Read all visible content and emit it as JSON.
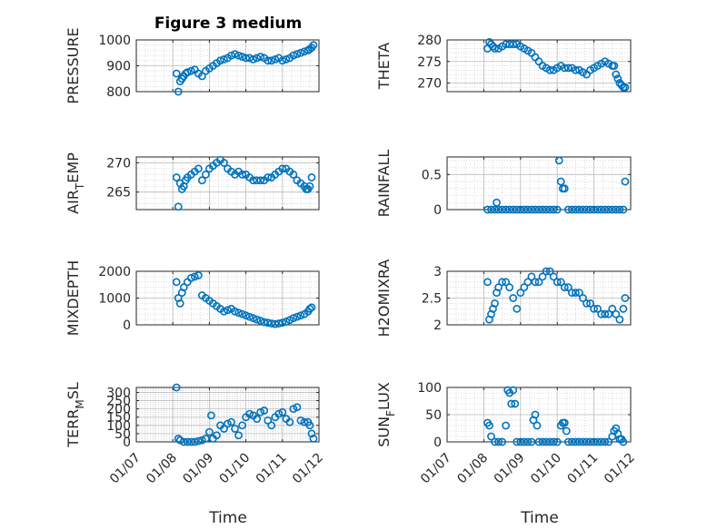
{
  "title": "Figure 3 medium",
  "x_axis_label": "Time",
  "marker_color": "#0072BD",
  "x_ticks": [
    "01/07",
    "01/08",
    "01/09",
    "01/10",
    "01/11",
    "01/12"
  ],
  "chart_data": [
    {
      "type": "scatter",
      "ylabel": "PRESSURE",
      "ylim": [
        800,
        1000
      ],
      "yticks": [
        800,
        900,
        1000
      ],
      "grid": true,
      "x": [
        1.1,
        1.15,
        1.2,
        1.25,
        1.3,
        1.35,
        1.4,
        1.5,
        1.6,
        1.7,
        1.8,
        1.9,
        2.0,
        2.1,
        2.2,
        2.3,
        2.4,
        2.5,
        2.6,
        2.7,
        2.8,
        2.9,
        3.0,
        3.1,
        3.2,
        3.3,
        3.4,
        3.5,
        3.6,
        3.7,
        3.8,
        3.9,
        4.0,
        4.1,
        4.2,
        4.3,
        4.4,
        4.5,
        4.6,
        4.7,
        4.75,
        4.8,
        4.85
      ],
      "y": [
        870,
        800,
        840,
        850,
        860,
        870,
        875,
        880,
        885,
        870,
        860,
        880,
        890,
        900,
        910,
        920,
        925,
        930,
        940,
        945,
        940,
        935,
        930,
        930,
        925,
        930,
        935,
        930,
        920,
        920,
        925,
        930,
        920,
        925,
        930,
        940,
        945,
        950,
        955,
        960,
        965,
        970,
        980
      ]
    },
    {
      "type": "scatter",
      "ylabel": "THETA",
      "ylim": [
        268,
        280
      ],
      "yticks": [
        270,
        275,
        280
      ],
      "grid": true,
      "x": [
        1.1,
        1.15,
        1.2,
        1.25,
        1.3,
        1.4,
        1.5,
        1.6,
        1.7,
        1.8,
        1.9,
        2.0,
        2.1,
        2.2,
        2.3,
        2.4,
        2.5,
        2.6,
        2.7,
        2.8,
        2.9,
        3.0,
        3.1,
        3.2,
        3.3,
        3.4,
        3.5,
        3.6,
        3.7,
        3.8,
        3.9,
        4.0,
        4.1,
        4.2,
        4.3,
        4.4,
        4.5,
        4.55,
        4.6,
        4.65,
        4.7,
        4.75,
        4.8,
        4.85
      ],
      "y": [
        278,
        279.5,
        279,
        278.5,
        278,
        278,
        278.5,
        279,
        279,
        279,
        279,
        278.5,
        278,
        277.5,
        277,
        276,
        275,
        274,
        273.5,
        273,
        273,
        273.5,
        274,
        273.5,
        273.5,
        273.5,
        273,
        273,
        272.5,
        272,
        273,
        273.5,
        274,
        274.5,
        275,
        274.5,
        274,
        274,
        272,
        271,
        270,
        269.5,
        269,
        269
      ]
    },
    {
      "type": "scatter",
      "ylabel": "AIR_TEMP",
      "ylabel_main": "AIR",
      "ylabel_sub": "T",
      "ylabel_rest": "EMP",
      "ylim": [
        262,
        271
      ],
      "yticks": [
        265,
        270
      ],
      "grid": true,
      "x": [
        1.1,
        1.15,
        1.2,
        1.25,
        1.3,
        1.35,
        1.4,
        1.5,
        1.6,
        1.7,
        1.8,
        1.9,
        2.0,
        2.1,
        2.2,
        2.3,
        2.4,
        2.5,
        2.6,
        2.7,
        2.8,
        2.9,
        3.0,
        3.1,
        3.2,
        3.3,
        3.4,
        3.5,
        3.6,
        3.7,
        3.8,
        3.9,
        4.0,
        4.1,
        4.2,
        4.3,
        4.4,
        4.5,
        4.6,
        4.65,
        4.7,
        4.75,
        4.8
      ],
      "y": [
        267.5,
        262.5,
        266.5,
        265.5,
        266,
        267,
        267.5,
        268,
        268.5,
        269,
        267,
        268,
        269,
        269.5,
        270,
        270.5,
        270,
        269,
        268.5,
        268,
        268.5,
        268,
        268,
        267.5,
        267,
        267,
        267,
        267,
        267.5,
        267.5,
        268,
        268.5,
        269,
        269,
        268.5,
        268,
        267,
        266.5,
        266,
        265.5,
        265.5,
        266,
        267.5
      ]
    },
    {
      "type": "scatter",
      "ylabel": "RAINFALL",
      "ylim": [
        0,
        0.75
      ],
      "yticks": [
        0,
        0.5
      ],
      "ytick_labels": [
        "0",
        "0.5"
      ],
      "grid": true,
      "x": [
        1.1,
        1.2,
        1.3,
        1.35,
        1.4,
        1.5,
        1.6,
        1.7,
        1.8,
        1.9,
        2.0,
        2.1,
        2.2,
        2.3,
        2.4,
        2.5,
        2.6,
        2.7,
        2.8,
        2.9,
        3.0,
        3.05,
        3.1,
        3.15,
        3.2,
        3.3,
        3.4,
        3.5,
        3.6,
        3.7,
        3.8,
        3.9,
        4.0,
        4.1,
        4.2,
        4.3,
        4.4,
        4.5,
        4.6,
        4.7,
        4.8,
        4.85
      ],
      "y": [
        0,
        0,
        0,
        0.1,
        0,
        0,
        0,
        0,
        0,
        0,
        0,
        0,
        0,
        0,
        0,
        0,
        0,
        0,
        0,
        0,
        0,
        0.7,
        0.4,
        0.3,
        0.3,
        0,
        0,
        0,
        0,
        0,
        0,
        0,
        0,
        0,
        0,
        0,
        0,
        0,
        0,
        0,
        0,
        0.4
      ]
    },
    {
      "type": "scatter",
      "ylabel": "MIXDEPTH",
      "ylim": [
        0,
        2000
      ],
      "yticks": [
        0,
        1000,
        2000
      ],
      "grid": true,
      "x": [
        1.1,
        1.15,
        1.2,
        1.25,
        1.3,
        1.4,
        1.5,
        1.6,
        1.7,
        1.8,
        1.9,
        2.0,
        2.1,
        2.2,
        2.3,
        2.4,
        2.5,
        2.6,
        2.7,
        2.8,
        2.9,
        3.0,
        3.1,
        3.2,
        3.3,
        3.4,
        3.5,
        3.6,
        3.7,
        3.8,
        3.9,
        4.0,
        4.1,
        4.2,
        4.3,
        4.4,
        4.5,
        4.6,
        4.7,
        4.75,
        4.8
      ],
      "y": [
        1600,
        1000,
        800,
        1200,
        1400,
        1600,
        1750,
        1800,
        1850,
        1100,
        1000,
        900,
        800,
        700,
        600,
        500,
        550,
        600,
        500,
        450,
        400,
        350,
        300,
        250,
        200,
        150,
        100,
        80,
        50,
        30,
        50,
        80,
        120,
        180,
        250,
        300,
        350,
        400,
        500,
        600,
        650
      ]
    },
    {
      "type": "scatter",
      "ylabel": "H2OMIXRA",
      "ylim": [
        2,
        3
      ],
      "yticks": [
        2,
        2.5,
        3
      ],
      "ytick_labels": [
        "2",
        "2.5",
        "3"
      ],
      "grid": true,
      "x": [
        1.1,
        1.15,
        1.2,
        1.25,
        1.3,
        1.35,
        1.4,
        1.5,
        1.6,
        1.7,
        1.8,
        1.9,
        2.0,
        2.1,
        2.2,
        2.3,
        2.4,
        2.5,
        2.6,
        2.7,
        2.8,
        2.9,
        3.0,
        3.1,
        3.2,
        3.3,
        3.4,
        3.5,
        3.6,
        3.7,
        3.8,
        3.9,
        4.0,
        4.1,
        4.2,
        4.3,
        4.4,
        4.5,
        4.6,
        4.7,
        4.8,
        4.85
      ],
      "y": [
        2.8,
        2.1,
        2.2,
        2.3,
        2.4,
        2.6,
        2.7,
        2.8,
        2.8,
        2.7,
        2.5,
        2.3,
        2.6,
        2.7,
        2.8,
        2.9,
        2.8,
        2.8,
        2.9,
        3.0,
        3.0,
        2.9,
        2.8,
        2.8,
        2.7,
        2.7,
        2.6,
        2.6,
        2.6,
        2.5,
        2.4,
        2.4,
        2.3,
        2.3,
        2.2,
        2.2,
        2.2,
        2.3,
        2.2,
        2.1,
        2.3,
        2.5
      ]
    },
    {
      "type": "scatter",
      "ylabel": "TERR_MSL",
      "ylabel_main": "TERR",
      "ylabel_sub": "M",
      "ylabel_rest": "SL",
      "ylim": [
        0,
        330
      ],
      "yticks": [
        0,
        50,
        100,
        150,
        200,
        250,
        300
      ],
      "grid": true,
      "x": [
        1.1,
        1.15,
        1.2,
        1.3,
        1.4,
        1.5,
        1.6,
        1.7,
        1.8,
        1.9,
        2.0,
        2.05,
        2.1,
        2.2,
        2.3,
        2.4,
        2.5,
        2.6,
        2.7,
        2.8,
        2.9,
        3.0,
        3.1,
        3.2,
        3.3,
        3.4,
        3.5,
        3.6,
        3.7,
        3.8,
        3.9,
        4.0,
        4.1,
        4.2,
        4.3,
        4.4,
        4.5,
        4.6,
        4.7,
        4.75,
        4.8,
        4.85
      ],
      "y": [
        330,
        20,
        10,
        0,
        0,
        0,
        0,
        5,
        10,
        20,
        60,
        160,
        20,
        40,
        100,
        80,
        110,
        120,
        80,
        40,
        100,
        150,
        170,
        160,
        140,
        180,
        190,
        130,
        100,
        150,
        170,
        180,
        140,
        120,
        200,
        210,
        130,
        120,
        120,
        100,
        50,
        20
      ]
    },
    {
      "type": "scatter",
      "ylabel": "SUN_FLUX",
      "ylabel_main": "SUN",
      "ylabel_sub": "F",
      "ylabel_rest": "LUX",
      "ylim": [
        0,
        100
      ],
      "yticks": [
        0,
        50,
        100
      ],
      "grid": true,
      "x": [
        1.1,
        1.15,
        1.2,
        1.3,
        1.4,
        1.5,
        1.6,
        1.65,
        1.7,
        1.75,
        1.8,
        1.85,
        1.9,
        2.0,
        2.1,
        2.2,
        2.3,
        2.35,
        2.4,
        2.45,
        2.5,
        2.6,
        2.7,
        2.8,
        2.9,
        3.0,
        3.1,
        3.15,
        3.2,
        3.25,
        3.3,
        3.4,
        3.5,
        3.6,
        3.7,
        3.8,
        3.9,
        4.0,
        4.1,
        4.2,
        4.3,
        4.4,
        4.5,
        4.55,
        4.6,
        4.65,
        4.7,
        4.75,
        4.8
      ],
      "y": [
        35,
        30,
        10,
        0,
        0,
        0,
        30,
        95,
        90,
        70,
        95,
        70,
        0,
        0,
        0,
        0,
        0,
        40,
        50,
        30,
        0,
        0,
        0,
        0,
        0,
        0,
        30,
        35,
        35,
        20,
        0,
        0,
        0,
        0,
        0,
        0,
        0,
        0,
        0,
        0,
        0,
        0,
        10,
        20,
        25,
        15,
        5,
        5,
        0
      ]
    }
  ]
}
